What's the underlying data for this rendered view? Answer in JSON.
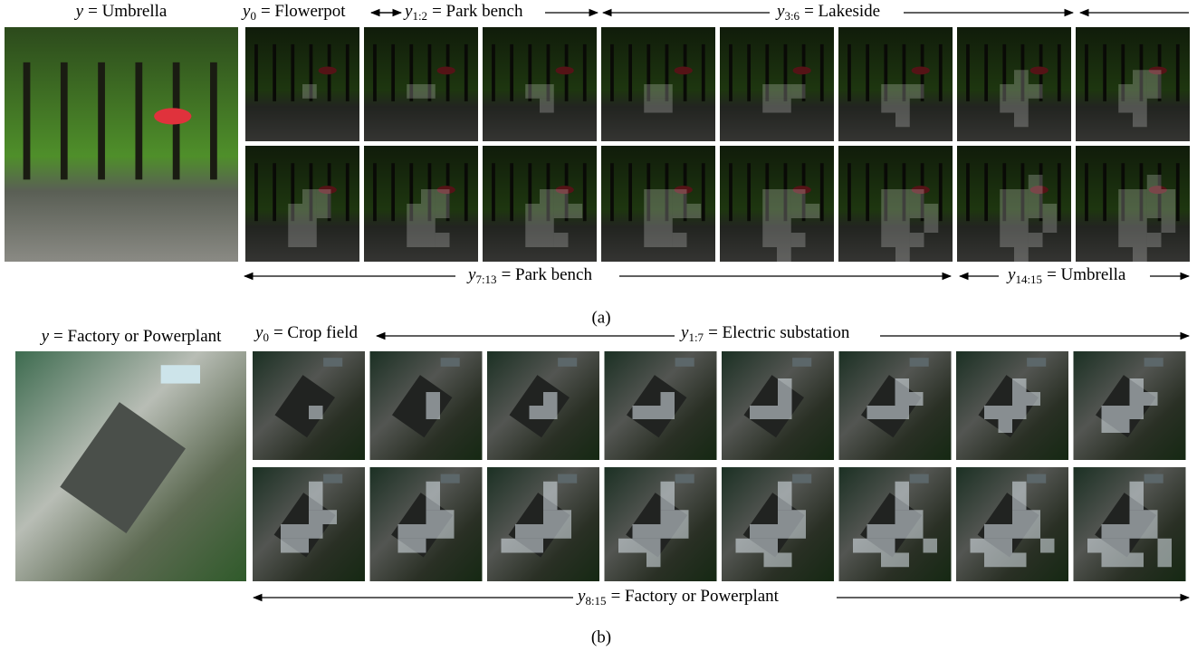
{
  "panels": [
    {
      "caption": "(a)",
      "original_label": {
        "symbol": "y",
        "text": "= Umbrella"
      },
      "top_labels": [
        {
          "symbol": "y",
          "subscript": "0",
          "text": "= Flowerpot"
        },
        {
          "symbol": "y",
          "subscript": "1:2",
          "text": "= Park bench"
        },
        {
          "symbol": "y",
          "subscript": "3:6",
          "text": "= Lakeside"
        }
      ],
      "bottom_labels": [
        {
          "symbol": "y",
          "subscript": "7:13",
          "text": "= Park bench"
        },
        {
          "symbol": "y",
          "subscript": "14:15",
          "text": "= Umbrella"
        }
      ]
    },
    {
      "caption": "(b)",
      "original_label": {
        "symbol": "y",
        "text": "= Factory or Powerplant"
      },
      "top_labels": [
        {
          "symbol": "y",
          "subscript": "0",
          "text": "= Crop field"
        },
        {
          "symbol": "y",
          "subscript": "1:7",
          "text": "= Electric substation"
        }
      ],
      "bottom_labels": [
        {
          "symbol": "y",
          "subscript": "8:15",
          "text": "= Factory or Powerplant"
        }
      ]
    }
  ]
}
